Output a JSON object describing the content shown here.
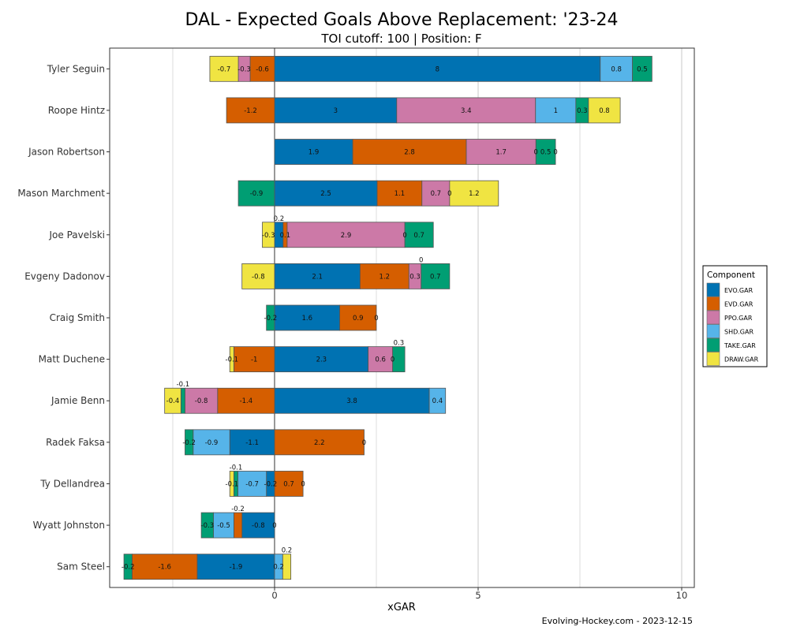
{
  "chart_data": {
    "type": "bar",
    "orientation": "horizontal-stacked",
    "title": "DAL - Expected Goals Above Replacement: '23-24",
    "subtitle": "TOI cutoff: 100 | Position: F",
    "xlabel": "xGAR",
    "ylabel": "",
    "xlim": [
      -4.05,
      10.31
    ],
    "xticks": [
      0,
      5,
      10
    ],
    "grid": true,
    "caption": "Evolving-Hockey.com - 2023-12-15",
    "legend": {
      "title": "Component",
      "placement": "right",
      "entries": [
        "EVO.GAR",
        "EVD.GAR",
        "PPO.GAR",
        "SHD.GAR",
        "TAKE.GAR",
        "DRAW.GAR"
      ]
    },
    "colors": {
      "EVO.GAR": "#0072B2",
      "EVD.GAR": "#D55E00",
      "PPO.GAR": "#CC79A7",
      "SHD.GAR": "#56B4E9",
      "TAKE.GAR": "#009E73",
      "DRAW.GAR": "#F0E442"
    },
    "categories": [
      "Tyler Seguin",
      "Roope Hintz",
      "Jason Robertson",
      "Mason Marchment",
      "Joe Pavelski",
      "Evgeny Dadonov",
      "Craig Smith",
      "Matt Duchene",
      "Jamie Benn",
      "Radek Faksa",
      "Ty Dellandrea",
      "Wyatt Johnston",
      "Sam Steel"
    ],
    "series": [
      {
        "name": "EVO.GAR",
        "values": [
          8.0,
          3.0,
          1.92,
          2.52,
          0.21,
          2.1,
          1.6,
          2.3,
          3.8,
          -1.1,
          -0.2,
          -0.8,
          -1.9
        ]
      },
      {
        "name": "EVD.GAR",
        "values": [
          -0.6,
          -1.18,
          2.79,
          1.1,
          0.1,
          1.2,
          0.9,
          -1.0,
          -1.4,
          2.2,
          0.7,
          -0.2,
          -1.6
        ]
      },
      {
        "name": "PPO.GAR",
        "values": [
          -0.29,
          3.41,
          1.71,
          0.68,
          2.89,
          0.3,
          0,
          0.6,
          -0.8,
          0,
          0,
          0,
          null
        ]
      },
      {
        "name": "SHD.GAR",
        "values": [
          0.79,
          0.99,
          0,
          0,
          0,
          0,
          null,
          0,
          0.4,
          -0.9,
          -0.7,
          -0.5,
          0.2
        ]
      },
      {
        "name": "TAKE.GAR",
        "values": [
          0.48,
          0.31,
          0.48,
          -0.89,
          0.7,
          0.7,
          -0.2,
          0.3,
          -0.1,
          -0.2,
          -0.1,
          -0.3,
          -0.2
        ]
      },
      {
        "name": "DRAW.GAR",
        "values": [
          -0.7,
          0.78,
          0,
          1.2,
          -0.3,
          -0.8,
          null,
          -0.1,
          -0.4,
          null,
          -0.1,
          null,
          0.2
        ]
      }
    ]
  }
}
